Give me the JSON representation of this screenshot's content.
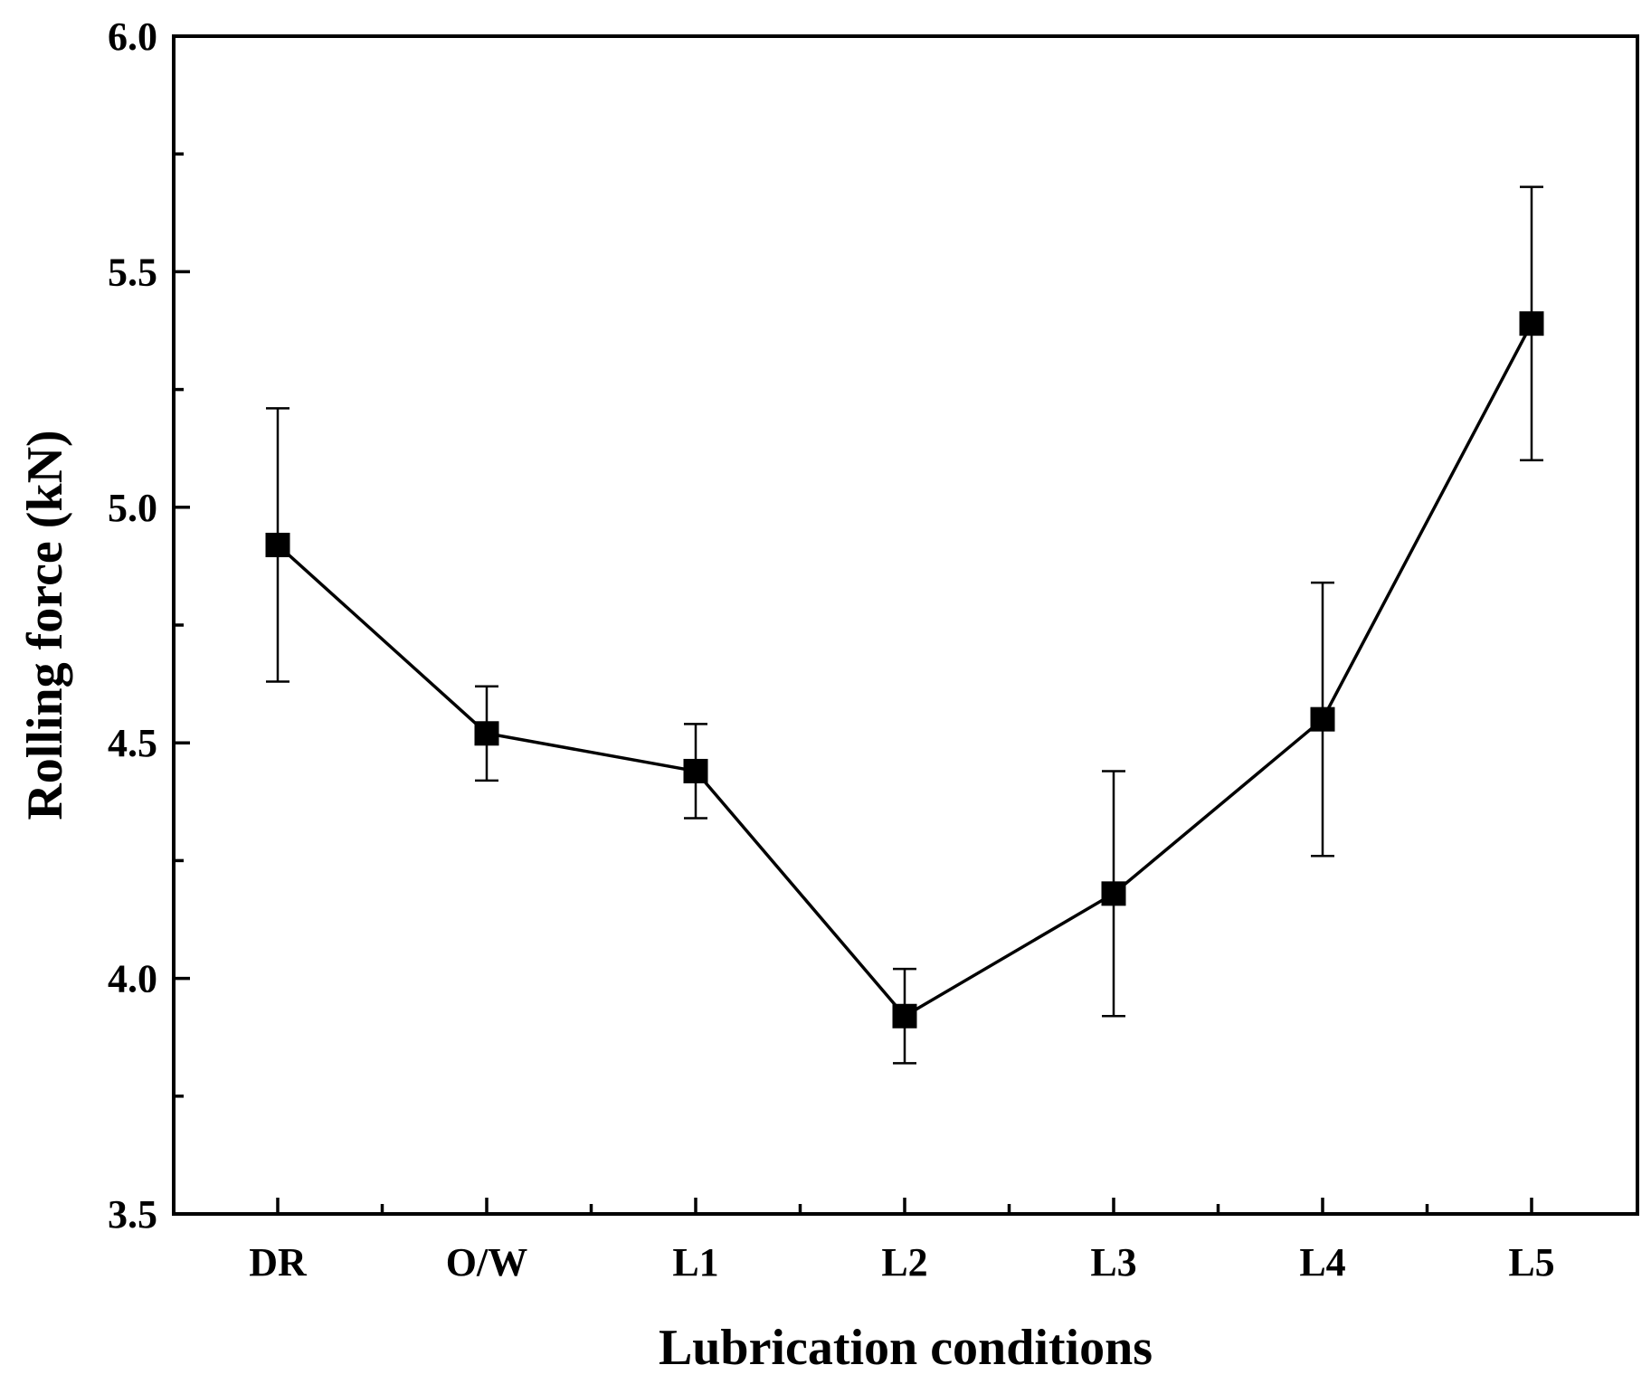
{
  "chart_data": {
    "type": "line",
    "title": "",
    "xlabel": "Lubrication conditions",
    "ylabel": "Rolling force (kN)",
    "categories": [
      "DR",
      "O/W",
      "L1",
      "L2",
      "L3",
      "L4",
      "L5"
    ],
    "series": [
      {
        "name": "Rolling force",
        "marker": "square",
        "values": [
          4.92,
          4.52,
          4.44,
          3.92,
          4.18,
          4.55,
          5.39
        ],
        "errors": [
          0.29,
          0.1,
          0.1,
          0.1,
          0.26,
          0.29,
          0.29
        ]
      }
    ],
    "ylim": [
      3.5,
      6.0
    ],
    "yticks": [
      "3.5",
      "4.0",
      "4.5",
      "5.0",
      "5.5",
      "6.0"
    ],
    "grid": false,
    "legend": "none",
    "colors": {
      "line": "#000000",
      "marker": "#000000",
      "axis": "#000000"
    }
  }
}
